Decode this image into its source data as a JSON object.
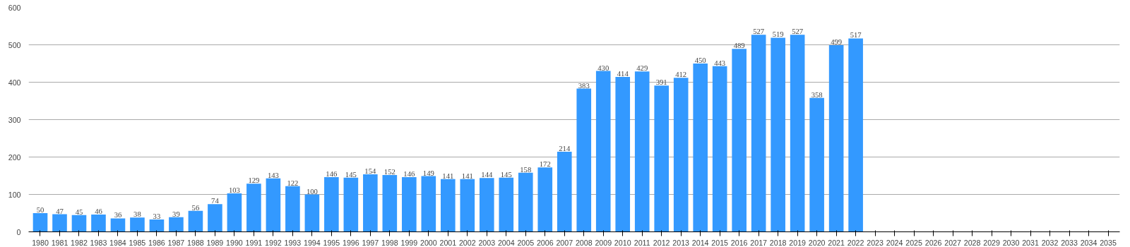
{
  "chart_data": {
    "type": "bar",
    "categories": [
      "1980",
      "1981",
      "1982",
      "1983",
      "1984",
      "1985",
      "1986",
      "1987",
      "1988",
      "1989",
      "1990",
      "1991",
      "1992",
      "1993",
      "1994",
      "1995",
      "1996",
      "1997",
      "1998",
      "1999",
      "2000",
      "2001",
      "2002",
      "2003",
      "2004",
      "2005",
      "2006",
      "2007",
      "2008",
      "2009",
      "2010",
      "2011",
      "2012",
      "2013",
      "2014",
      "2015",
      "2016",
      "2017",
      "2018",
      "2019",
      "2020",
      "2021",
      "2022",
      "2023",
      "2024",
      "2025",
      "2026",
      "2027",
      "2028",
      "2029",
      "2030",
      "2031",
      "2032",
      "2033",
      "2034",
      "2035"
    ],
    "values": [
      50,
      47,
      45,
      46,
      36,
      38,
      33,
      39,
      56,
      74,
      103,
      129,
      143,
      122,
      100,
      146,
      145,
      154,
      152,
      146,
      149,
      141,
      141,
      144,
      145,
      158,
      172,
      214,
      383,
      430,
      414,
      429,
      391,
      412,
      450,
      443,
      489,
      527,
      519,
      527,
      358,
      499,
      517,
      null,
      null,
      null,
      null,
      null,
      null,
      null,
      null,
      null,
      null,
      null,
      null,
      null
    ],
    "color": "#3399ff",
    "ylim": [
      0,
      600
    ],
    "yticks": [
      0,
      100,
      200,
      300,
      400,
      500,
      600
    ],
    "grid": "y",
    "data_labels": true
  }
}
